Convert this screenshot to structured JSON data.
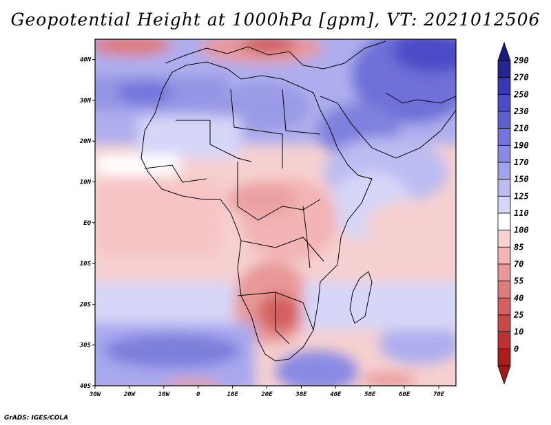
{
  "title": "Geopotential Height at 1000hPa [gpm], VT: 2021012506",
  "footer": "GrADS: IGES/COLA",
  "map": {
    "lon_range": [
      -30,
      75
    ],
    "lat_range": [
      -40,
      45
    ],
    "lon_ticks": [
      {
        "value": -30,
        "label": "30W"
      },
      {
        "value": -20,
        "label": "20W"
      },
      {
        "value": -10,
        "label": "10W"
      },
      {
        "value": 0,
        "label": "0"
      },
      {
        "value": 10,
        "label": "10E"
      },
      {
        "value": 20,
        "label": "20E"
      },
      {
        "value": 30,
        "label": "30E"
      },
      {
        "value": 40,
        "label": "40E"
      },
      {
        "value": 50,
        "label": "50E"
      },
      {
        "value": 60,
        "label": "60E"
      },
      {
        "value": 70,
        "label": "70E"
      }
    ],
    "lat_ticks": [
      {
        "value": 40,
        "label": "40N"
      },
      {
        "value": 30,
        "label": "30N"
      },
      {
        "value": 20,
        "label": "20N"
      },
      {
        "value": 10,
        "label": "10N"
      },
      {
        "value": 0,
        "label": "EQ"
      },
      {
        "value": -10,
        "label": "10S"
      },
      {
        "value": -20,
        "label": "20S"
      },
      {
        "value": -30,
        "label": "30S"
      },
      {
        "value": -40,
        "label": "40S"
      }
    ]
  },
  "colorbar": {
    "labels": [
      "290",
      "270",
      "250",
      "230",
      "210",
      "190",
      "170",
      "150",
      "125",
      "110",
      "100",
      "85",
      "70",
      "55",
      "40",
      "25",
      "10",
      "0"
    ],
    "colors": [
      "#25258f",
      "#3838b4",
      "#4c4cc8",
      "#5f5fd2",
      "#7474dc",
      "#8a8ae4",
      "#a2a2ec",
      "#bcbcf2",
      "#d6d6f8",
      "#ffffff",
      "#f8d2d2",
      "#f2b4b4",
      "#e89898",
      "#de7c7c",
      "#d46060",
      "#c84848",
      "#bc3232",
      "#aa1e1e"
    ],
    "top_color": "#1c1c80",
    "bottom_color": "#a01a1a"
  },
  "legend_colors": {
    "land_outline": "#000000"
  }
}
